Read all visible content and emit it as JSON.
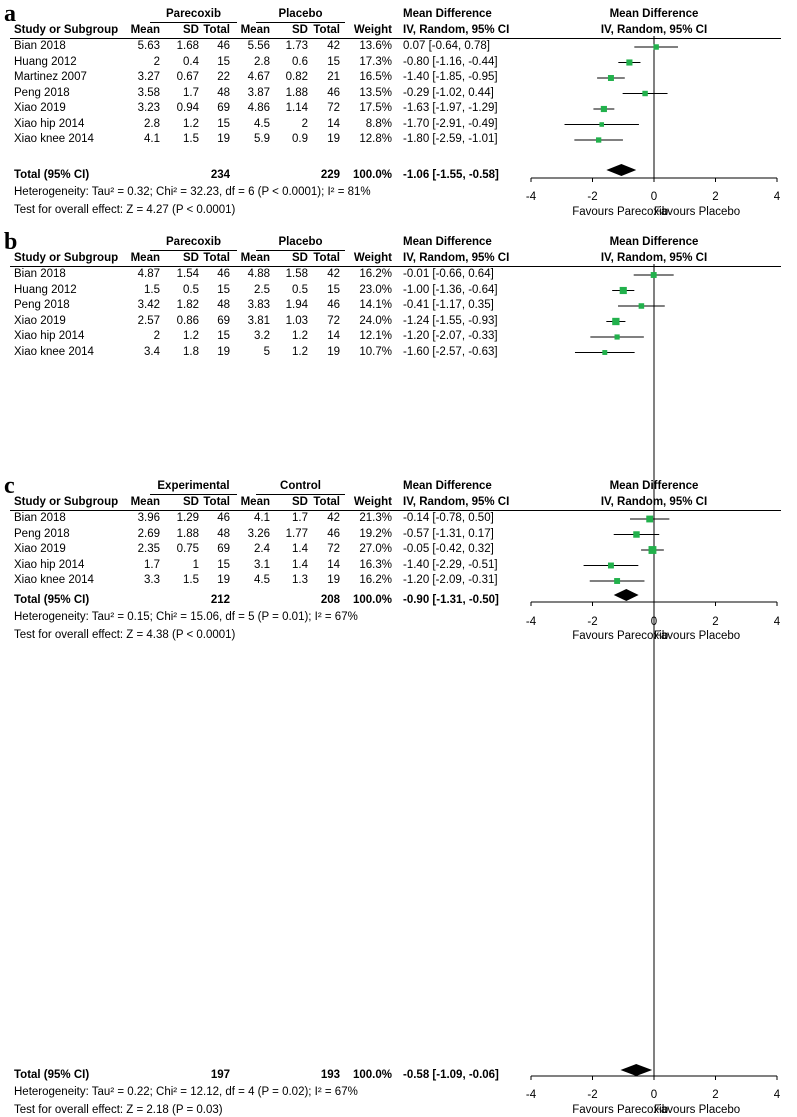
{
  "chart_data": [
    {
      "type": "forest",
      "panel_label": "a",
      "group_headers": [
        "Parecoxib",
        "Placebo"
      ],
      "columns": [
        "Study or Subgroup",
        "Mean",
        "SD",
        "Total",
        "Mean",
        "SD",
        "Total",
        "Weight",
        "IV, Random, 95% CI"
      ],
      "effect_header": "Mean Difference",
      "plot_header": "Mean Difference",
      "plot_subheader": "IV, Random, 95% CI",
      "studies": [
        {
          "name": "Bian 2018",
          "m1": "5.63",
          "sd1": "1.68",
          "n1": "46",
          "m2": "5.56",
          "sd2": "1.73",
          "n2": "42",
          "weight": "13.6%",
          "ci_text": "0.07 [-0.64, 0.78]",
          "md": 0.07,
          "lo": -0.64,
          "hi": 0.78
        },
        {
          "name": "Huang 2012",
          "m1": "2",
          "sd1": "0.4",
          "n1": "15",
          "m2": "2.8",
          "sd2": "0.6",
          "n2": "15",
          "weight": "17.3%",
          "ci_text": "-0.80 [-1.16, -0.44]",
          "md": -0.8,
          "lo": -1.16,
          "hi": -0.44
        },
        {
          "name": "Martinez 2007",
          "m1": "3.27",
          "sd1": "0.67",
          "n1": "22",
          "m2": "4.67",
          "sd2": "0.82",
          "n2": "21",
          "weight": "16.5%",
          "ci_text": "-1.40 [-1.85, -0.95]",
          "md": -1.4,
          "lo": -1.85,
          "hi": -0.95
        },
        {
          "name": "Peng 2018",
          "m1": "3.58",
          "sd1": "1.7",
          "n1": "48",
          "m2": "3.87",
          "sd2": "1.88",
          "n2": "46",
          "weight": "13.5%",
          "ci_text": "-0.29 [-1.02, 0.44]",
          "md": -0.29,
          "lo": -1.02,
          "hi": 0.44
        },
        {
          "name": "Xiao 2019",
          "m1": "3.23",
          "sd1": "0.94",
          "n1": "69",
          "m2": "4.86",
          "sd2": "1.14",
          "n2": "72",
          "weight": "17.5%",
          "ci_text": "-1.63 [-1.97, -1.29]",
          "md": -1.63,
          "lo": -1.97,
          "hi": -1.29
        },
        {
          "name": "Xiao hip  2014",
          "m1": "2.8",
          "sd1": "1.2",
          "n1": "15",
          "m2": "4.5",
          "sd2": "2",
          "n2": "14",
          "weight": "8.8%",
          "ci_text": "-1.70 [-2.91, -0.49]",
          "md": -1.7,
          "lo": -2.91,
          "hi": -0.49
        },
        {
          "name": "Xiao knee 2014",
          "m1": "4.1",
          "sd1": "1.5",
          "n1": "19",
          "m2": "5.9",
          "sd2": "0.9",
          "n2": "19",
          "weight": "12.8%",
          "ci_text": "-1.80 [-2.59, -1.01]",
          "md": -1.8,
          "lo": -2.59,
          "hi": -1.01
        }
      ],
      "total": {
        "label": "Total (95% CI)",
        "n1": "234",
        "n2": "229",
        "weight": "100.0%",
        "ci_text": "-1.06 [-1.55, -0.58]",
        "md": -1.06,
        "lo": -1.55,
        "hi": -0.58
      },
      "heterogeneity": "Heterogeneity: Tau² = 0.32; Chi² = 32.23, df = 6 (P < 0.0001); I² = 81%",
      "overall_effect": "Test for overall effect: Z = 4.27 (P < 0.0001)",
      "xlim": [
        -4,
        4
      ],
      "xticks": [
        "-4",
        "-2",
        "0",
        "2",
        "4"
      ],
      "favours_left": "Favours Parecoxib",
      "favours_right": "Favours Placebo",
      "marker_color": "#22b14c"
    },
    {
      "type": "forest",
      "panel_label": "b",
      "group_headers": [
        "Parecoxib",
        "Placebo"
      ],
      "columns": [
        "Study or Subgroup",
        "Mean",
        "SD",
        "Total",
        "Mean",
        "SD",
        "Total",
        "Weight",
        "IV, Random, 95% CI"
      ],
      "effect_header": "Mean Difference",
      "plot_header": "Mean Difference",
      "plot_subheader": "IV, Random, 95% CI",
      "studies": [
        {
          "name": "Bian 2018",
          "m1": "4.87",
          "sd1": "1.54",
          "n1": "46",
          "m2": "4.88",
          "sd2": "1.58",
          "n2": "42",
          "weight": "16.2%",
          "ci_text": "-0.01 [-0.66, 0.64]",
          "md": -0.01,
          "lo": -0.66,
          "hi": 0.64
        },
        {
          "name": "Huang 2012",
          "m1": "1.5",
          "sd1": "0.5",
          "n1": "15",
          "m2": "2.5",
          "sd2": "0.5",
          "n2": "15",
          "weight": "23.0%",
          "ci_text": "-1.00 [-1.36, -0.64]",
          "md": -1.0,
          "lo": -1.36,
          "hi": -0.64
        },
        {
          "name": "Peng 2018",
          "m1": "3.42",
          "sd1": "1.82",
          "n1": "48",
          "m2": "3.83",
          "sd2": "1.94",
          "n2": "46",
          "weight": "14.1%",
          "ci_text": "-0.41 [-1.17, 0.35]",
          "md": -0.41,
          "lo": -1.17,
          "hi": 0.35
        },
        {
          "name": "Xiao 2019",
          "m1": "2.57",
          "sd1": "0.86",
          "n1": "69",
          "m2": "3.81",
          "sd2": "1.03",
          "n2": "72",
          "weight": "24.0%",
          "ci_text": "-1.24 [-1.55, -0.93]",
          "md": -1.24,
          "lo": -1.55,
          "hi": -0.93
        },
        {
          "name": "Xiao hip  2014",
          "m1": "2",
          "sd1": "1.2",
          "n1": "15",
          "m2": "3.2",
          "sd2": "1.2",
          "n2": "14",
          "weight": "12.1%",
          "ci_text": "-1.20 [-2.07, -0.33]",
          "md": -1.2,
          "lo": -2.07,
          "hi": -0.33
        },
        {
          "name": "Xiao knee 2014",
          "m1": "3.4",
          "sd1": "1.8",
          "n1": "19",
          "m2": "5",
          "sd2": "1.2",
          "n2": "19",
          "weight": "10.7%",
          "ci_text": "-1.60 [-2.57, -0.63]",
          "md": -1.6,
          "lo": -2.57,
          "hi": -0.63
        }
      ],
      "total": {
        "label": "Total (95% CI)",
        "n1": "212",
        "n2": "208",
        "weight": "100.0%",
        "ci_text": "-0.90 [-1.31, -0.50]",
        "md": -0.9,
        "lo": -1.31,
        "hi": -0.5
      },
      "heterogeneity": "Heterogeneity: Tau² = 0.15; Chi² = 15.06, df = 5 (P = 0.01); I² = 67%",
      "overall_effect": "Test for overall effect: Z = 4.38 (P < 0.0001)",
      "xlim": [
        -4,
        4
      ],
      "xticks": [
        "-4",
        "-2",
        "0",
        "2",
        "4"
      ],
      "favours_left": "Favours Parecoxib",
      "favours_right": "Favours Placebo",
      "marker_color": "#22b14c"
    },
    {
      "type": "forest",
      "panel_label": "c",
      "group_headers": [
        "Experimental",
        "Control"
      ],
      "columns": [
        "Study or Subgroup",
        "Mean",
        "SD",
        "Total",
        "Mean",
        "SD",
        "Total",
        "Weight",
        "IV, Random, 95% CI"
      ],
      "effect_header": "Mean Difference",
      "plot_header": "Mean Difference",
      "plot_subheader": "IV, Random, 95% CI",
      "studies": [
        {
          "name": "Bian 2018",
          "m1": "3.96",
          "sd1": "1.29",
          "n1": "46",
          "m2": "4.1",
          "sd2": "1.7",
          "n2": "42",
          "weight": "21.3%",
          "ci_text": "-0.14 [-0.78, 0.50]",
          "md": -0.14,
          "lo": -0.78,
          "hi": 0.5
        },
        {
          "name": "Peng 2018",
          "m1": "2.69",
          "sd1": "1.88",
          "n1": "48",
          "m2": "3.26",
          "sd2": "1.77",
          "n2": "46",
          "weight": "19.2%",
          "ci_text": "-0.57 [-1.31, 0.17]",
          "md": -0.57,
          "lo": -1.31,
          "hi": 0.17
        },
        {
          "name": "Xiao 2019",
          "m1": "2.35",
          "sd1": "0.75",
          "n1": "69",
          "m2": "2.4",
          "sd2": "1.4",
          "n2": "72",
          "weight": "27.0%",
          "ci_text": "-0.05 [-0.42, 0.32]",
          "md": -0.05,
          "lo": -0.42,
          "hi": 0.32
        },
        {
          "name": "Xiao hip  2014",
          "m1": "1.7",
          "sd1": "1",
          "n1": "15",
          "m2": "3.1",
          "sd2": "1.4",
          "n2": "14",
          "weight": "16.3%",
          "ci_text": "-1.40 [-2.29, -0.51]",
          "md": -1.4,
          "lo": -2.29,
          "hi": -0.51
        },
        {
          "name": "Xiao knee 2014",
          "m1": "3.3",
          "sd1": "1.5",
          "n1": "19",
          "m2": "4.5",
          "sd2": "1.3",
          "n2": "19",
          "weight": "16.2%",
          "ci_text": "-1.20 [-2.09, -0.31]",
          "md": -1.2,
          "lo": -2.09,
          "hi": -0.31
        }
      ],
      "total": {
        "label": "Total (95% CI)",
        "n1": "197",
        "n2": "193",
        "weight": "100.0%",
        "ci_text": "-0.58 [-1.09, -0.06]",
        "md": -0.58,
        "lo": -1.09,
        "hi": -0.06
      },
      "heterogeneity": "Heterogeneity: Tau² = 0.22; Chi² = 12.12, df = 4 (P = 0.02); I² = 67%",
      "overall_effect": "Test for overall effect: Z = 2.18 (P = 0.03)",
      "xlim": [
        -4,
        4
      ],
      "xticks": [
        "-4",
        "-2",
        "0",
        "2",
        "4"
      ],
      "favours_left": "Favours Parecoxib",
      "favours_right": "Favours Placebo",
      "marker_color": "#22b14c"
    }
  ]
}
